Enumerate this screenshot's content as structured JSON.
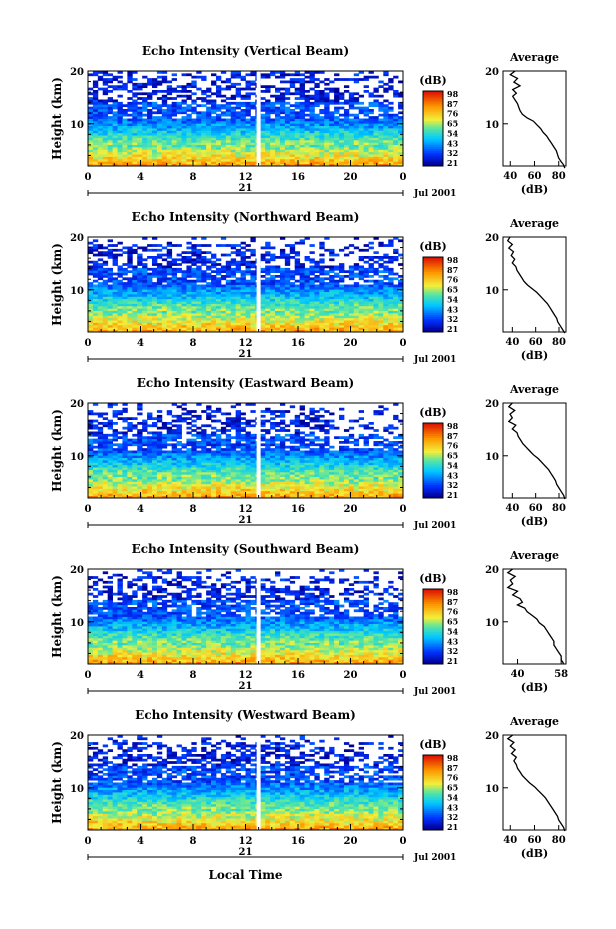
{
  "chart_data": [
    {
      "type": "heatmap",
      "title": "Echo Intensity (Vertical Beam)",
      "ylabel": "Height (km)",
      "y_ticks": [
        "20",
        "10"
      ],
      "x_ticks": [
        "0",
        "4",
        "8",
        "12",
        "16",
        "20",
        "0"
      ],
      "date_day": "21",
      "date_label": "Jul 2001",
      "colorbar_unit": "(dB)",
      "colorbar_ticks": [
        "98",
        "87",
        "76",
        "65",
        "54",
        "43",
        "32",
        "21"
      ],
      "gap_hour": 13,
      "profile": {
        "title": "Average",
        "xlabel": "(dB)",
        "x_ticks": [
          "40",
          "60",
          "80"
        ],
        "y_ticks": [
          "20",
          "10"
        ],
        "xlim": [
          34,
          86
        ],
        "points": [
          [
            44,
            20
          ],
          [
            40,
            19.3
          ],
          [
            46,
            18.6
          ],
          [
            43,
            17.9
          ],
          [
            48,
            17.2
          ],
          [
            42,
            16.5
          ],
          [
            45,
            15.8
          ],
          [
            42,
            15.2
          ],
          [
            44,
            14.5
          ],
          [
            46,
            13.8
          ],
          [
            47,
            13.1
          ],
          [
            48,
            12.5
          ],
          [
            50,
            11.8
          ],
          [
            54,
            11.1
          ],
          [
            59,
            10.5
          ],
          [
            62,
            9.8
          ],
          [
            65,
            9.1
          ],
          [
            67,
            8.4
          ],
          [
            70,
            7.7
          ],
          [
            72,
            7
          ],
          [
            74,
            6.3
          ],
          [
            76,
            5.6
          ],
          [
            78,
            4.9
          ],
          [
            79,
            4.2
          ],
          [
            80,
            3.5
          ],
          [
            82,
            2.8
          ],
          [
            84,
            2.2
          ],
          [
            85,
            1.6
          ]
        ]
      }
    },
    {
      "type": "heatmap",
      "title": "Echo Intensity (Northward Beam)",
      "ylabel": "Height (km)",
      "y_ticks": [
        "20",
        "10"
      ],
      "x_ticks": [
        "0",
        "4",
        "8",
        "12",
        "16",
        "20",
        "0"
      ],
      "date_day": "21",
      "date_label": "Jul 2001",
      "colorbar_unit": "(dB)",
      "colorbar_ticks": [
        "98",
        "87",
        "76",
        "65",
        "54",
        "43",
        "32",
        "21"
      ],
      "gap_hour": 13,
      "profile": {
        "title": "Average",
        "xlabel": "(dB)",
        "x_ticks": [
          "40",
          "60",
          "80"
        ],
        "y_ticks": [
          "20",
          "10"
        ],
        "xlim": [
          32,
          86
        ],
        "points": [
          [
            38,
            20
          ],
          [
            36,
            19.3
          ],
          [
            40,
            18.6
          ],
          [
            37,
            17.9
          ],
          [
            41,
            17.2
          ],
          [
            39,
            16.5
          ],
          [
            42,
            15.8
          ],
          [
            40,
            15.1
          ],
          [
            43,
            14.4
          ],
          [
            44,
            13.7
          ],
          [
            46,
            13
          ],
          [
            48,
            12.3
          ],
          [
            50,
            11.6
          ],
          [
            53,
            10.9
          ],
          [
            57,
            10.2
          ],
          [
            61,
            9.5
          ],
          [
            64,
            8.8
          ],
          [
            67,
            8.1
          ],
          [
            70,
            7.4
          ],
          [
            72,
            6.7
          ],
          [
            74,
            6
          ],
          [
            76,
            5.3
          ],
          [
            78,
            4.6
          ],
          [
            79,
            3.9
          ],
          [
            81,
            3.2
          ],
          [
            83,
            2.5
          ],
          [
            85,
            1.8
          ]
        ]
      }
    },
    {
      "type": "heatmap",
      "title": "Echo Intensity (Eastward Beam)",
      "ylabel": "Height (km)",
      "y_ticks": [
        "20",
        "10"
      ],
      "x_ticks": [
        "0",
        "4",
        "8",
        "12",
        "16",
        "20",
        "0"
      ],
      "date_day": "21",
      "date_label": "Jul 2001",
      "colorbar_unit": "(dB)",
      "colorbar_ticks": [
        "98",
        "87",
        "76",
        "65",
        "54",
        "43",
        "32",
        "21"
      ],
      "gap_hour": 13,
      "profile": {
        "title": "Average",
        "xlabel": "(dB)",
        "x_ticks": [
          "40",
          "60",
          "80"
        ],
        "y_ticks": [
          "20",
          "10"
        ],
        "xlim": [
          32,
          86
        ],
        "points": [
          [
            40,
            20
          ],
          [
            37,
            19.3
          ],
          [
            42,
            18.6
          ],
          [
            38,
            17.9
          ],
          [
            40,
            17.2
          ],
          [
            37,
            16.5
          ],
          [
            43,
            15.8
          ],
          [
            40,
            15.1
          ],
          [
            44,
            14.4
          ],
          [
            45,
            13.7
          ],
          [
            47,
            13
          ],
          [
            49,
            12.3
          ],
          [
            52,
            11.6
          ],
          [
            55,
            10.9
          ],
          [
            58,
            10.2
          ],
          [
            62,
            9.5
          ],
          [
            65,
            8.8
          ],
          [
            68,
            8.1
          ],
          [
            71,
            7.4
          ],
          [
            73,
            6.7
          ],
          [
            75,
            6
          ],
          [
            77,
            5.3
          ],
          [
            78,
            4.6
          ],
          [
            80,
            3.9
          ],
          [
            82,
            3.2
          ],
          [
            84,
            2.5
          ],
          [
            85,
            1.8
          ]
        ]
      }
    },
    {
      "type": "heatmap",
      "title": "Echo Intensity (Southward Beam)",
      "ylabel": "Height (km)",
      "y_ticks": [
        "20",
        "10"
      ],
      "x_ticks": [
        "0",
        "4",
        "8",
        "12",
        "16",
        "20",
        "0"
      ],
      "date_day": "21",
      "date_label": "Jul 2001",
      "colorbar_unit": "(dB)",
      "colorbar_ticks": [
        "98",
        "87",
        "76",
        "65",
        "54",
        "43",
        "32",
        "21"
      ],
      "gap_hour": 13,
      "profile": {
        "title": "Average",
        "xlabel": "(dB)",
        "x_ticks": [
          "40",
          "58"
        ],
        "y_ticks": [
          "20",
          "10"
        ],
        "xlim": [
          34,
          60
        ],
        "points": [
          [
            38,
            20
          ],
          [
            36,
            19.3
          ],
          [
            39,
            18.6
          ],
          [
            37,
            17.9
          ],
          [
            38,
            17.2
          ],
          [
            36,
            16.5
          ],
          [
            40,
            15.8
          ],
          [
            38,
            15.1
          ],
          [
            41,
            14.4
          ],
          [
            42,
            13.7
          ],
          [
            40,
            13.2
          ],
          [
            43,
            12.6
          ],
          [
            44,
            11.9
          ],
          [
            46,
            11.2
          ],
          [
            48,
            10.5
          ],
          [
            49,
            9.8
          ],
          [
            51,
            9.1
          ],
          [
            52,
            8.4
          ],
          [
            53,
            7.7
          ],
          [
            54,
            7
          ],
          [
            55,
            6.3
          ],
          [
            55,
            5.6
          ],
          [
            56,
            4.9
          ],
          [
            57,
            4.2
          ],
          [
            58,
            3.5
          ],
          [
            58,
            2.8
          ],
          [
            59,
            2.1
          ]
        ]
      }
    },
    {
      "type": "heatmap",
      "title": "Echo Intensity (Westward Beam)",
      "ylabel": "Height (km)",
      "y_ticks": [
        "20",
        "10"
      ],
      "x_ticks": [
        "0",
        "4",
        "8",
        "12",
        "16",
        "20",
        "0"
      ],
      "date_day": "21",
      "date_label": "Jul 2001",
      "colorbar_unit": "(dB)",
      "colorbar_ticks": [
        "98",
        "87",
        "76",
        "65",
        "54",
        "43",
        "32",
        "21"
      ],
      "gap_hour": 13,
      "profile": {
        "title": "Average",
        "xlabel": "(dB)",
        "x_ticks": [
          "40",
          "60",
          "80"
        ],
        "y_ticks": [
          "20",
          "10"
        ],
        "xlim": [
          34,
          86
        ],
        "points": [
          [
            42,
            20
          ],
          [
            38,
            19.3
          ],
          [
            43,
            18.6
          ],
          [
            40,
            17.9
          ],
          [
            44,
            17.2
          ],
          [
            41,
            16.5
          ],
          [
            45,
            15.8
          ],
          [
            43,
            15.1
          ],
          [
            45,
            14.4
          ],
          [
            46,
            13.7
          ],
          [
            48,
            13
          ],
          [
            50,
            12.3
          ],
          [
            53,
            11.6
          ],
          [
            56,
            10.9
          ],
          [
            60,
            10.2
          ],
          [
            63,
            9.5
          ],
          [
            66,
            8.8
          ],
          [
            69,
            8.1
          ],
          [
            71,
            7.4
          ],
          [
            73,
            6.7
          ],
          [
            75,
            6
          ],
          [
            77,
            5.3
          ],
          [
            79,
            4.6
          ],
          [
            80,
            3.9
          ],
          [
            82,
            3.2
          ],
          [
            84,
            2.5
          ],
          [
            85,
            1.8
          ]
        ]
      }
    }
  ],
  "xlabel": "Local Time"
}
